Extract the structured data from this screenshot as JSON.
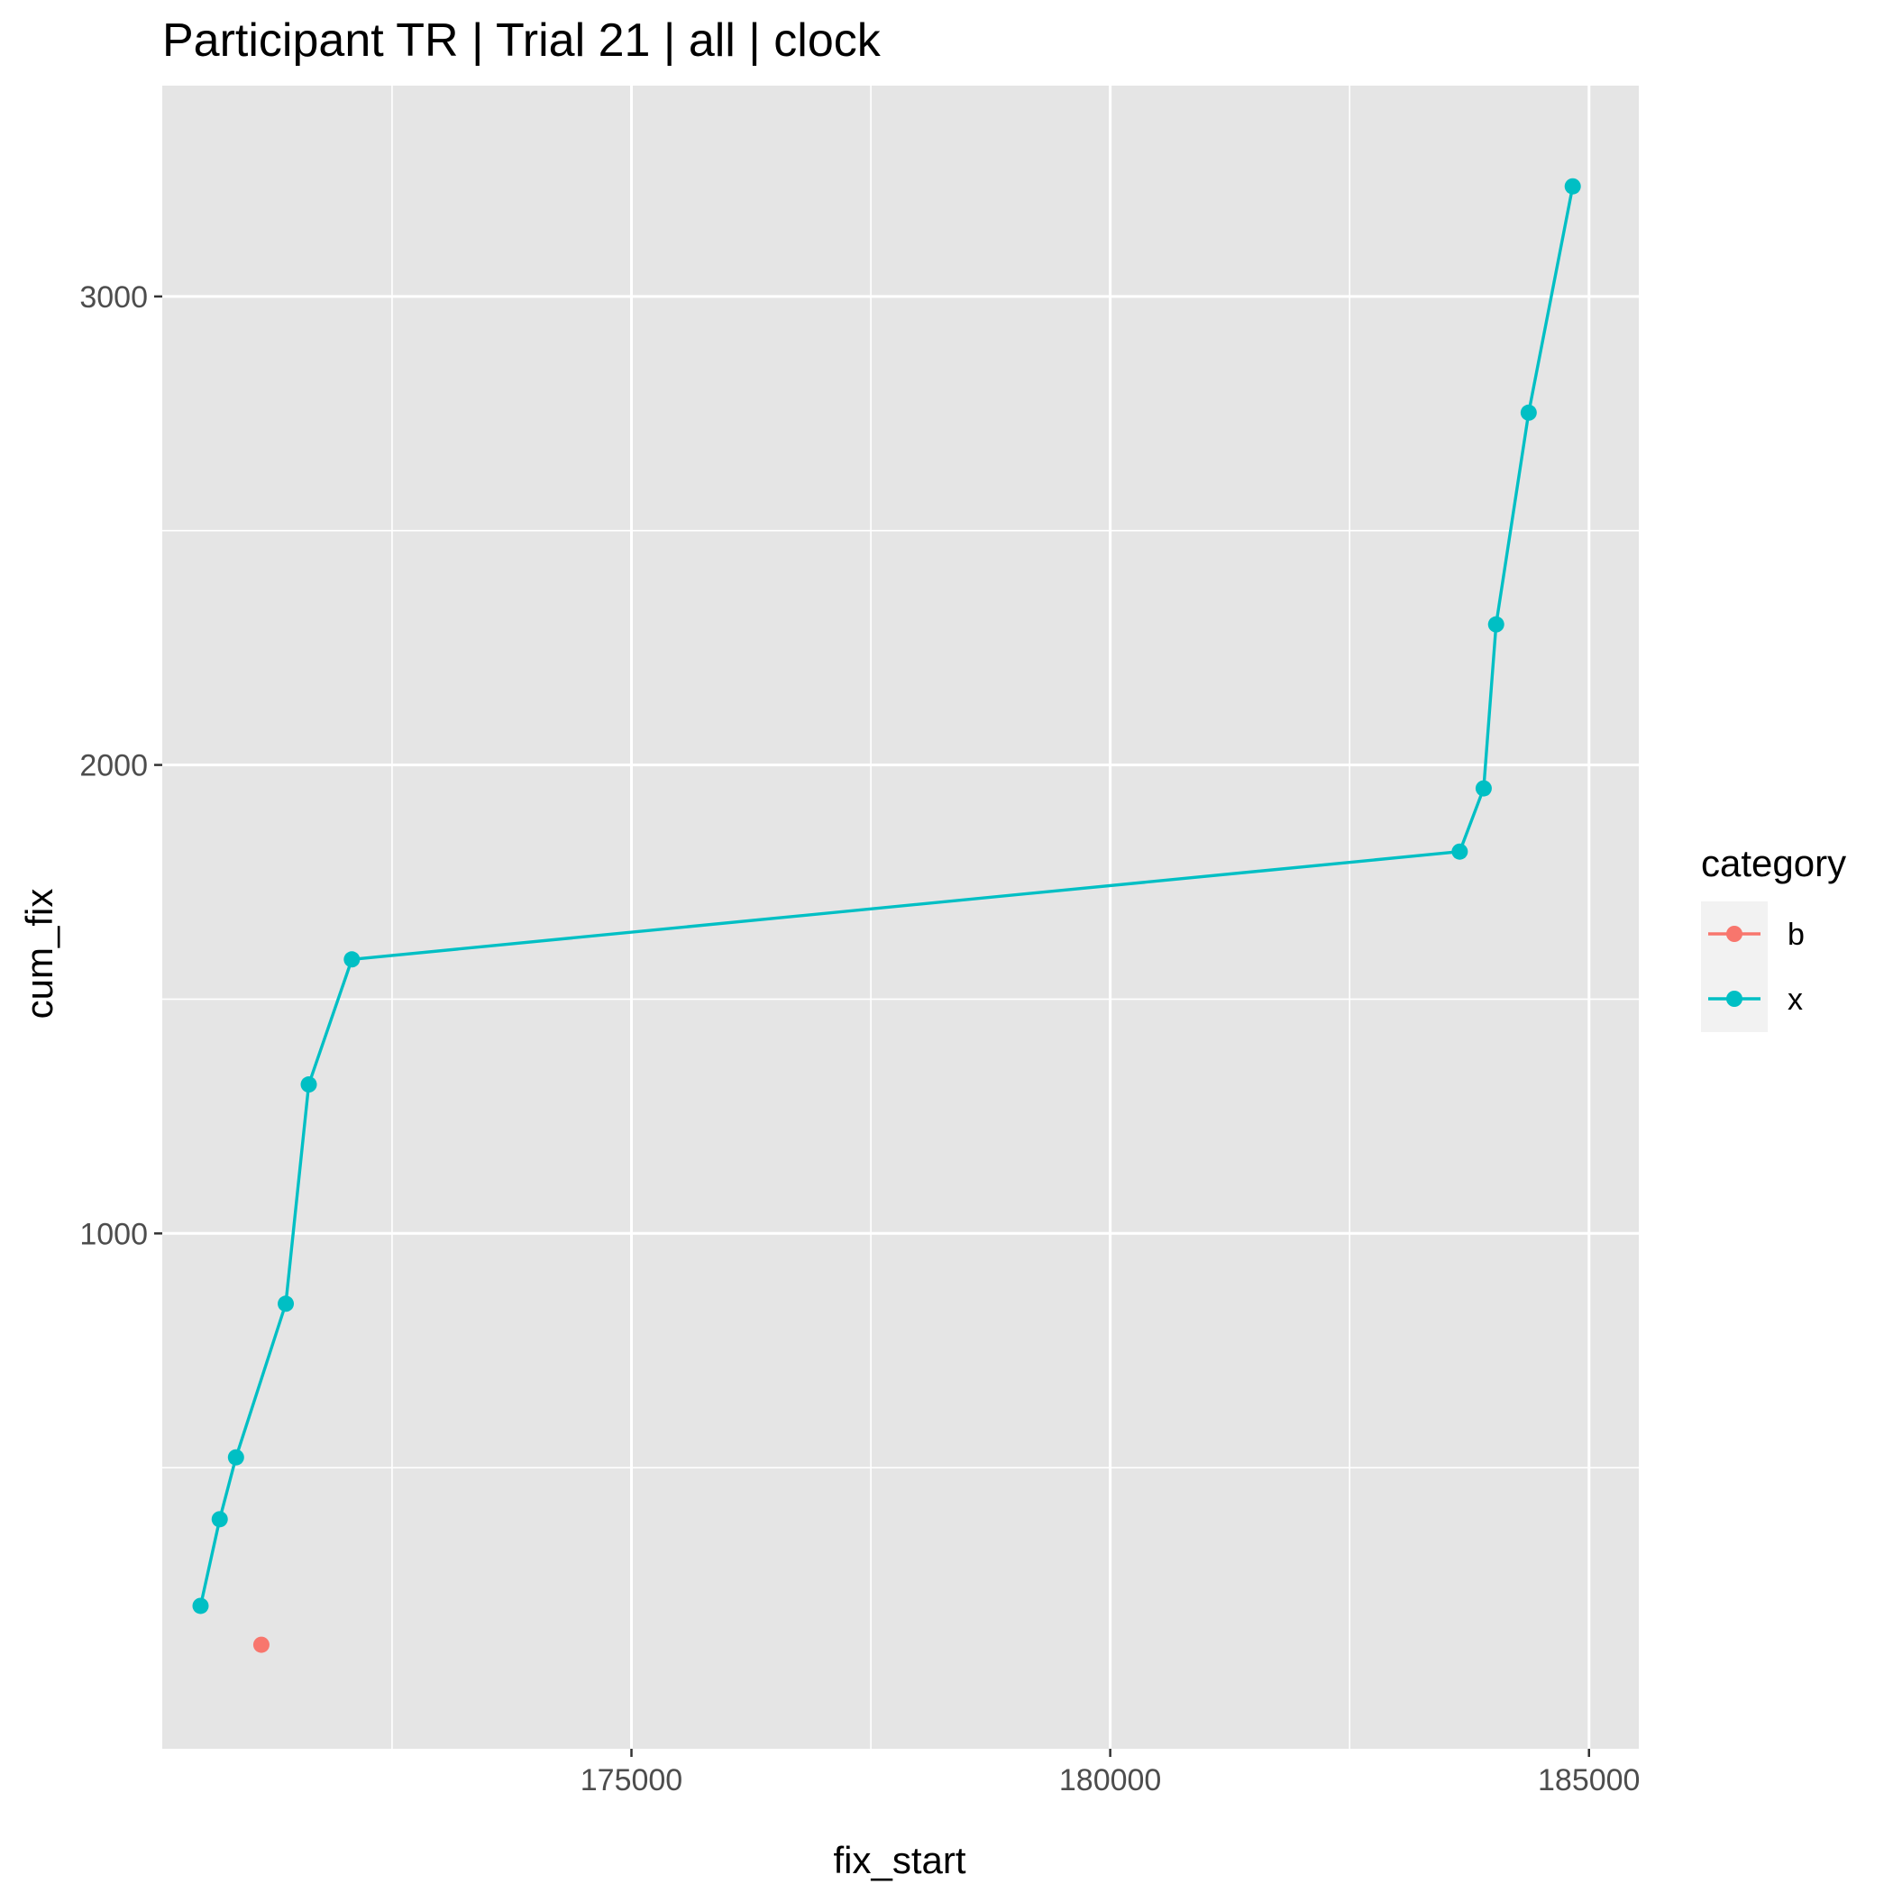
{
  "chart_data": {
    "type": "scatter",
    "title": "Participant TR | Trial 21 | all | clock",
    "xlabel": "fix_start",
    "ylabel": "cum_fix",
    "xlim": [
      170100,
      185520
    ],
    "ylim": [
      -100,
      3450
    ],
    "x_ticks": [
      175000,
      180000,
      185000
    ],
    "x_tick_labels": [
      "175000",
      "180000",
      "185000"
    ],
    "x_minor": [
      172500,
      177500,
      182500
    ],
    "y_ticks": [
      1000,
      2000,
      3000
    ],
    "y_tick_labels": [
      "1000",
      "2000",
      "3000"
    ],
    "y_minor": [
      500,
      1500,
      2500
    ],
    "grid": true,
    "legend": {
      "title": "category",
      "position": "right",
      "entries": [
        {
          "label": "b",
          "color": "#F8766D"
        },
        {
          "label": "x",
          "color": "#00BFC4"
        }
      ]
    },
    "series": [
      {
        "name": "b",
        "color": "#F8766D",
        "lines": false,
        "points": [
          [
            171135,
            122
          ]
        ]
      },
      {
        "name": "x",
        "color": "#00BFC4",
        "lines": true,
        "points": [
          [
            170500,
            205
          ],
          [
            170700,
            390
          ],
          [
            170870,
            522
          ],
          [
            171390,
            850
          ],
          [
            171630,
            1318
          ],
          [
            172080,
            1585
          ],
          [
            183650,
            1815
          ],
          [
            183900,
            1950
          ],
          [
            184030,
            2300
          ],
          [
            184370,
            2752
          ],
          [
            184830,
            3235
          ]
        ]
      }
    ]
  }
}
